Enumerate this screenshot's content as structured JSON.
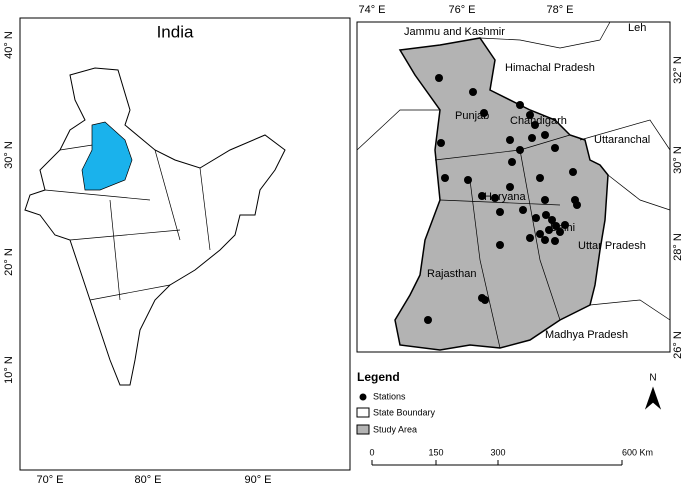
{
  "left_map": {
    "title": "India",
    "lat_labels": [
      "40° N",
      "30° N",
      "20° N",
      "10° N"
    ],
    "lon_labels": [
      "70° E",
      "80° E",
      "90° E"
    ]
  },
  "right_map": {
    "lon_labels": [
      "74° E",
      "76° E",
      "78° E"
    ],
    "lat_labels": [
      "32° N",
      "30° N",
      "28° N",
      "26° N"
    ],
    "places": [
      "Jammu and Kashmir",
      "Leh",
      "Himachal Pradesh",
      "Punjab",
      "Chandigarh",
      "Uttaranchal",
      "Haryana",
      "Delhi",
      "Uttar Pradesh",
      "Rajasthan",
      "Madhya Pradesh"
    ]
  },
  "legend": {
    "title": "Legend",
    "items": [
      "Stations",
      "State Boundary",
      "Study Area"
    ]
  },
  "north_arrow": "N",
  "scale_bar": {
    "labels": [
      "0",
      "150",
      "300",
      "600 Km"
    ]
  }
}
